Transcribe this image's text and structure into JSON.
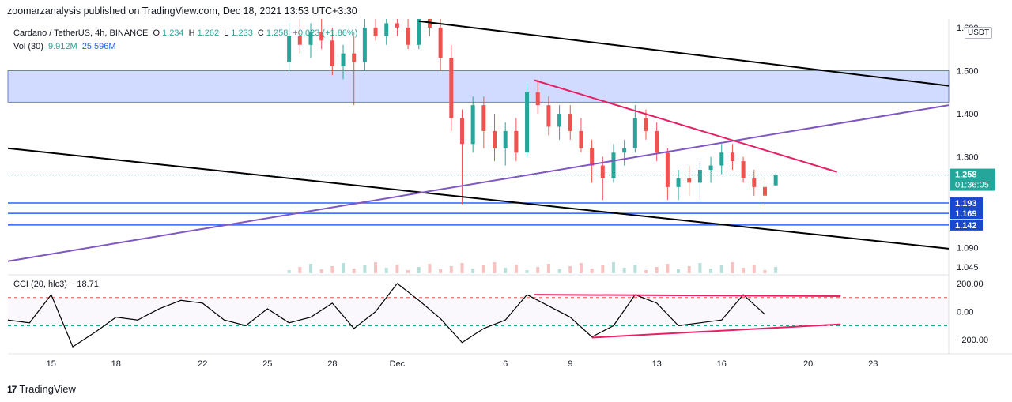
{
  "header": {
    "published": "zoomarzanalysis published on TradingView.com, Dec 18, 2021 13:53 UTC+3:30"
  },
  "legend": {
    "symbol": "Cardano / TetherUS, 4h, BINANCE",
    "open_label": "O",
    "open": "1.234",
    "high_label": "H",
    "high": "1.262",
    "low_label": "L",
    "low": "1.233",
    "close_label": "C",
    "close": "1.258",
    "change": "+0.023 (+1.86%)",
    "vol_label": "Vol (30)",
    "vol": "9.912M",
    "vol_ma": "25.596M",
    "cci_label": "CCI (20, hlc3)",
    "cci": "−18.71"
  },
  "currency": "USDT",
  "footer": {
    "brand": "TradingView"
  },
  "colors": {
    "up": "#26a69a",
    "down": "#ef5350",
    "zone": "#d1dbff",
    "purple": "#7e57c2",
    "pink": "#e91e63",
    "hline": "#2962ff"
  },
  "chart_data": [
    {
      "type": "candlestick",
      "title": "Cardano / TetherUS, 4h, BINANCE",
      "ylim": [
        1.03,
        1.62
      ],
      "price_ticks": [
        "1.600",
        "1.500",
        "1.400",
        "1.300",
        "1.090",
        "1.045"
      ],
      "price_tick_values": [
        1.6,
        1.5,
        1.4,
        1.3,
        1.09,
        1.045
      ],
      "x_ticks": [
        "15",
        "18",
        "22",
        "25",
        "28",
        "Dec",
        "6",
        "9",
        "13",
        "16",
        "20",
        "23"
      ],
      "x_tick_dates": [
        "2021-11-15",
        "2021-11-18",
        "2021-11-22",
        "2021-11-25",
        "2021-11-28",
        "2021-12-01",
        "2021-12-06",
        "2021-12-09",
        "2021-12-13",
        "2021-12-16",
        "2021-12-20",
        "2021-12-23"
      ],
      "last_price": {
        "value": "1.258",
        "countdown": "01:36:05"
      },
      "horizontal_levels": [
        "1.193",
        "1.169",
        "1.142"
      ],
      "supply_zone": [
        1.427,
        1.5
      ],
      "trendlines": [
        {
          "name": "black-upper",
          "from": [
            "2021-12-02T00:00",
            1.615
          ],
          "to": [
            "2021-12-26T12:00",
            1.465
          ]
        },
        {
          "name": "black-lower",
          "from": [
            "2021-11-13T00:00",
            1.32
          ],
          "to": [
            "2021-12-26T12:00",
            1.087
          ]
        },
        {
          "name": "purple",
          "from": [
            "2021-11-13T00:00",
            1.058
          ],
          "to": [
            "2021-12-26T12:00",
            1.42
          ]
        },
        {
          "name": "pink",
          "from": [
            "2021-12-07T08:00",
            1.478
          ],
          "to": [
            "2021-12-21T08:00",
            1.265
          ]
        }
      ],
      "candles": [
        [
          "2021-11-26T00:00",
          1.52,
          1.61,
          1.5,
          1.58
        ],
        [
          "2021-11-26T12:00",
          1.58,
          1.62,
          1.54,
          1.56
        ],
        [
          "2021-11-27T00:00",
          1.56,
          1.61,
          1.53,
          1.59
        ],
        [
          "2021-11-27T12:00",
          1.59,
          1.62,
          1.55,
          1.57
        ],
        [
          "2021-11-28T00:00",
          1.57,
          1.6,
          1.49,
          1.51
        ],
        [
          "2021-11-28T12:00",
          1.51,
          1.56,
          1.48,
          1.54
        ],
        [
          "2021-11-29T00:00",
          1.54,
          1.58,
          1.42,
          1.52
        ],
        [
          "2021-11-29T12:00",
          1.52,
          1.62,
          1.5,
          1.6
        ],
        [
          "2021-11-30T00:00",
          1.6,
          1.62,
          1.57,
          1.58
        ],
        [
          "2021-11-30T12:00",
          1.58,
          1.62,
          1.56,
          1.61
        ],
        [
          "2021-12-01T00:00",
          1.61,
          1.62,
          1.58,
          1.6
        ],
        [
          "2021-12-01T12:00",
          1.6,
          1.62,
          1.55,
          1.56
        ],
        [
          "2021-12-02T00:00",
          1.56,
          1.63,
          1.55,
          1.62
        ],
        [
          "2021-12-02T12:00",
          1.62,
          1.63,
          1.58,
          1.6
        ],
        [
          "2021-12-03T00:00",
          1.6,
          1.62,
          1.5,
          1.53
        ],
        [
          "2021-12-03T12:00",
          1.53,
          1.56,
          1.36,
          1.39
        ],
        [
          "2021-12-04T00:00",
          1.39,
          1.41,
          1.19,
          1.33
        ],
        [
          "2021-12-04T12:00",
          1.33,
          1.44,
          1.31,
          1.42
        ],
        [
          "2021-12-05T00:00",
          1.42,
          1.44,
          1.32,
          1.36
        ],
        [
          "2021-12-05T12:00",
          1.36,
          1.4,
          1.29,
          1.32
        ],
        [
          "2021-12-06T00:00",
          1.32,
          1.38,
          1.28,
          1.36
        ],
        [
          "2021-12-06T12:00",
          1.36,
          1.39,
          1.29,
          1.31
        ],
        [
          "2021-12-07T00:00",
          1.31,
          1.47,
          1.3,
          1.45
        ],
        [
          "2021-12-07T12:00",
          1.45,
          1.48,
          1.4,
          1.42
        ],
        [
          "2021-12-08T00:00",
          1.42,
          1.44,
          1.35,
          1.37
        ],
        [
          "2021-12-08T12:00",
          1.37,
          1.42,
          1.34,
          1.4
        ],
        [
          "2021-12-09T00:00",
          1.4,
          1.42,
          1.34,
          1.36
        ],
        [
          "2021-12-09T12:00",
          1.36,
          1.39,
          1.31,
          1.32
        ],
        [
          "2021-12-10T00:00",
          1.32,
          1.34,
          1.24,
          1.28
        ],
        [
          "2021-12-10T12:00",
          1.28,
          1.3,
          1.2,
          1.25
        ],
        [
          "2021-12-11T00:00",
          1.25,
          1.33,
          1.24,
          1.31
        ],
        [
          "2021-12-11T12:00",
          1.31,
          1.34,
          1.28,
          1.32
        ],
        [
          "2021-12-12T00:00",
          1.32,
          1.42,
          1.31,
          1.39
        ],
        [
          "2021-12-12T12:00",
          1.39,
          1.41,
          1.34,
          1.36
        ],
        [
          "2021-12-13T00:00",
          1.36,
          1.38,
          1.29,
          1.31
        ],
        [
          "2021-12-13T12:00",
          1.31,
          1.32,
          1.2,
          1.23
        ],
        [
          "2021-12-14T00:00",
          1.23,
          1.27,
          1.2,
          1.25
        ],
        [
          "2021-12-14T12:00",
          1.25,
          1.28,
          1.21,
          1.24
        ],
        [
          "2021-12-15T00:00",
          1.24,
          1.29,
          1.2,
          1.27
        ],
        [
          "2021-12-15T12:00",
          1.27,
          1.3,
          1.24,
          1.28
        ],
        [
          "2021-12-16T00:00",
          1.28,
          1.33,
          1.26,
          1.31
        ],
        [
          "2021-12-16T12:00",
          1.31,
          1.33,
          1.27,
          1.29
        ],
        [
          "2021-12-17T00:00",
          1.29,
          1.3,
          1.24,
          1.25
        ],
        [
          "2021-12-17T12:00",
          1.25,
          1.27,
          1.21,
          1.23
        ],
        [
          "2021-12-18T00:00",
          1.23,
          1.25,
          1.19,
          1.21
        ],
        [
          "2021-12-18T12:00",
          1.234,
          1.262,
          1.233,
          1.258
        ]
      ]
    },
    {
      "type": "line",
      "title": "CCI (20, hlc3)",
      "ylim": [
        -300,
        250
      ],
      "y_ticks": [
        "200.00",
        "0.00",
        "−200.00"
      ],
      "y_tick_values": [
        200,
        0,
        -200
      ],
      "levels": [
        100,
        -100
      ],
      "dates": [
        "2021-11-13",
        "2021-11-14",
        "2021-11-15",
        "2021-11-16",
        "2021-11-17",
        "2021-11-18",
        "2021-11-19",
        "2021-11-20",
        "2021-11-21",
        "2021-11-22",
        "2021-11-23",
        "2021-11-24",
        "2021-11-25",
        "2021-11-26",
        "2021-11-27",
        "2021-11-28",
        "2021-11-29",
        "2021-11-30",
        "2021-12-01",
        "2021-12-02",
        "2021-12-03",
        "2021-12-04",
        "2021-12-05",
        "2021-12-06",
        "2021-12-07",
        "2021-12-08",
        "2021-12-09",
        "2021-12-10",
        "2021-12-11",
        "2021-12-12",
        "2021-12-13",
        "2021-12-14",
        "2021-12-15",
        "2021-12-16",
        "2021-12-17",
        "2021-12-18"
      ],
      "values": [
        -60,
        -80,
        120,
        -250,
        -150,
        -40,
        -60,
        20,
        80,
        60,
        -60,
        -100,
        20,
        -80,
        -40,
        60,
        -120,
        0,
        200,
        80,
        -50,
        -220,
        -120,
        -60,
        120,
        40,
        -40,
        -180,
        -100,
        120,
        60,
        -100,
        -80,
        -60,
        120,
        -20
      ],
      "divergence_lines": [
        {
          "from": [
            "2021-12-07T08:00",
            120
          ],
          "to": [
            "2021-12-21T12:00",
            110
          ]
        },
        {
          "from": [
            "2021-12-10T00:00",
            -185
          ],
          "to": [
            "2021-12-21T12:00",
            -90
          ]
        }
      ]
    }
  ]
}
